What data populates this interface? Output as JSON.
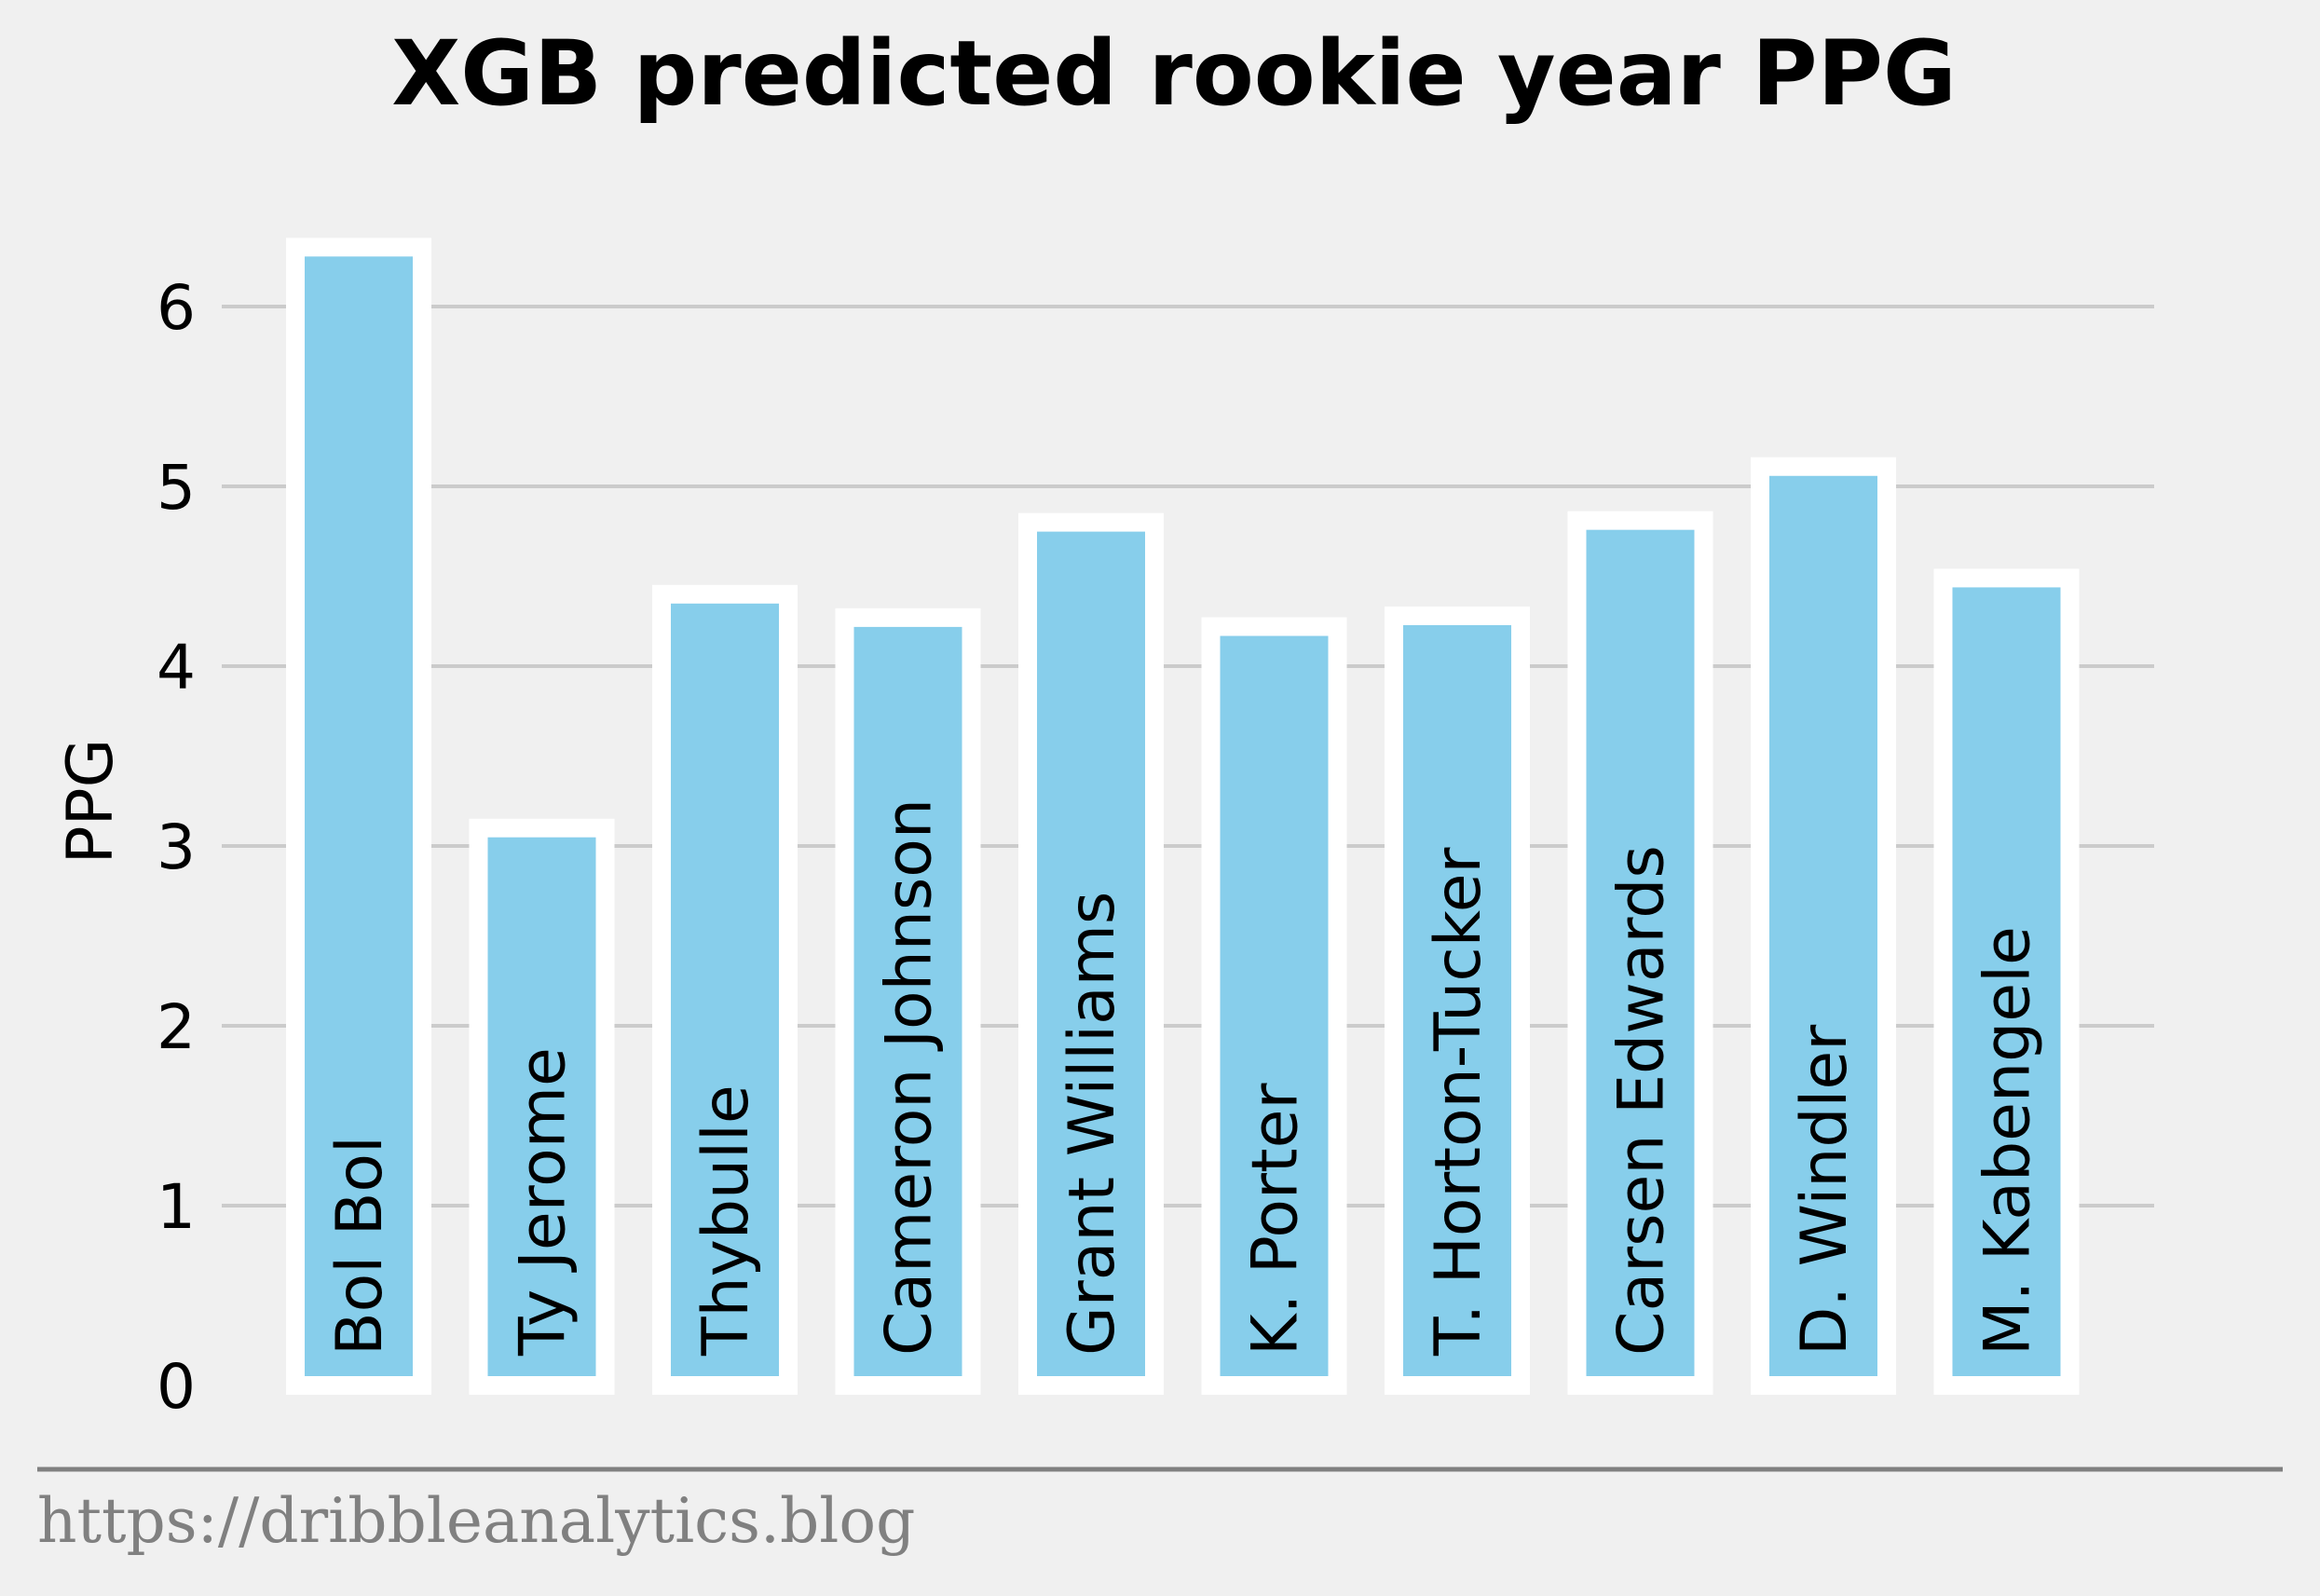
{
  "chart_data": {
    "type": "bar",
    "title": "XGB predicted rookie year PPG",
    "xlabel": "",
    "ylabel": "PPG",
    "categories": [
      "Bol Bol",
      "Ty Jerome",
      "Thybulle",
      "Cameron Johnson",
      "Grant Williams",
      "K. Porter",
      "T. Horton-Tucker",
      "Carsen Edwards",
      "D. Windler",
      "M. Kabengele"
    ],
    "values": [
      6.33,
      3.1,
      4.4,
      4.27,
      4.8,
      4.22,
      4.28,
      4.81,
      5.11,
      4.49
    ],
    "ylim": [
      0,
      6.4
    ],
    "yticks": [
      "0",
      "1",
      "2",
      "3",
      "4",
      "5",
      "6"
    ],
    "grid": "horizontal",
    "bar_color": "#87ceeb",
    "edge_color": "#ffffff",
    "labels_inside_bars": true
  },
  "footer": {
    "source": "https://dribbleanalytics.blog"
  },
  "colors": {
    "background": "#f0f0f0",
    "grid": "#cbcbcb",
    "footer_text": "#808080",
    "footer_rule": "#808080"
  }
}
